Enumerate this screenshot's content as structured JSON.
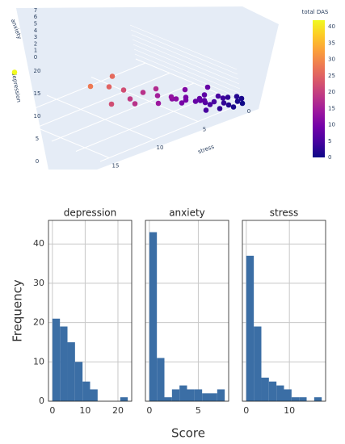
{
  "chart_data": [
    {
      "type": "scatter3d",
      "xaxis_title": "stress",
      "yaxis_title": "depression",
      "zaxis_title": "anxiety",
      "xticks": [
        0,
        5,
        10,
        15
      ],
      "yticks": [
        0,
        5,
        10,
        15,
        20
      ],
      "zticks": [
        0,
        1,
        2,
        3,
        4,
        5,
        6,
        7
      ],
      "colorbar_title": "total DAS",
      "clim": [
        0,
        42
      ],
      "cticks": [
        0,
        5,
        10,
        15,
        20,
        25,
        30,
        35,
        40
      ],
      "colorscale": [
        "#0d0887",
        "#46039f",
        "#7201a8",
        "#9c179e",
        "#bd3786",
        "#d8576b",
        "#ed7953",
        "#fb9f3a",
        "#fdca26",
        "#f0f921"
      ],
      "x": [
        13,
        10,
        8,
        9,
        8,
        10,
        6,
        8,
        6,
        5,
        5,
        6,
        4,
        4,
        3,
        3,
        2,
        2,
        1,
        1,
        0,
        0,
        1,
        1,
        2,
        1,
        2,
        3,
        3,
        2,
        4,
        0,
        0,
        0,
        3,
        7,
        5,
        1,
        2,
        1
      ],
      "y": [
        22,
        12,
        11,
        10,
        9,
        8,
        9,
        7,
        6,
        8,
        5,
        6,
        4,
        5,
        3,
        4,
        2,
        3,
        2,
        1,
        1,
        0,
        2,
        3,
        1,
        0,
        4,
        2,
        6,
        5,
        7,
        3,
        1,
        0,
        2,
        10,
        4,
        6,
        8,
        5
      ],
      "z": [
        7,
        6,
        7,
        6,
        5,
        4,
        3,
        3,
        5,
        2,
        3,
        2,
        2,
        1,
        2,
        1,
        1,
        0,
        0,
        0,
        1,
        0,
        1,
        1,
        0,
        0,
        0,
        2,
        1,
        0,
        1,
        0,
        0,
        1,
        0,
        2,
        3,
        0,
        1,
        2
      ],
      "color_values": [
        42,
        28,
        26,
        25,
        22,
        22,
        18,
        18,
        17,
        15,
        13,
        14,
        10,
        10,
        8,
        8,
        5,
        5,
        3,
        2,
        2,
        0,
        4,
        5,
        3,
        1,
        6,
        7,
        10,
        7,
        12,
        3,
        1,
        1,
        5,
        19,
        12,
        7,
        11,
        8
      ]
    },
    {
      "type": "histogram",
      "title": "depression",
      "ylabel": "Frequency",
      "color": "#3b6ea5",
      "bins": [
        0,
        2.3,
        4.6,
        6.9,
        9.2,
        11.5,
        13.8,
        16.1,
        18.4,
        20.7,
        23
      ],
      "values": [
        21,
        19,
        15,
        10,
        5,
        3,
        0,
        0,
        0,
        1
      ],
      "xlim": [
        -1.2,
        24.2
      ],
      "xticks": [
        0,
        10,
        20
      ],
      "ylim": [
        0,
        46
      ],
      "yticks": [
        0,
        10,
        20,
        30,
        40
      ]
    },
    {
      "type": "histogram",
      "title": "anxiety",
      "xlabel": "Score",
      "color": "#3b6ea5",
      "bins": [
        0,
        0.77,
        1.54,
        2.31,
        3.08,
        3.85,
        4.62,
        5.39,
        6.16,
        6.93,
        7.7
      ],
      "values": [
        43,
        11,
        1,
        3,
        4,
        3,
        3,
        2,
        2,
        3
      ],
      "xlim": [
        -0.4,
        8.1
      ],
      "xticks": [
        0,
        5
      ],
      "ylim": [
        0,
        46
      ],
      "yticks": [
        0,
        10,
        20,
        30,
        40
      ]
    },
    {
      "type": "histogram",
      "title": "stress",
      "color": "#3b6ea5",
      "bins": [
        0,
        1.75,
        3.5,
        5.25,
        7,
        8.75,
        10.5,
        12.25,
        14,
        15.75,
        17.5
      ],
      "values": [
        37,
        19,
        6,
        5,
        4,
        3,
        1,
        1,
        0,
        1
      ],
      "xlim": [
        -0.9,
        18.4
      ],
      "xticks": [
        0,
        10
      ],
      "ylim": [
        0,
        46
      ],
      "yticks": [
        0,
        10,
        20,
        30,
        40
      ]
    }
  ]
}
